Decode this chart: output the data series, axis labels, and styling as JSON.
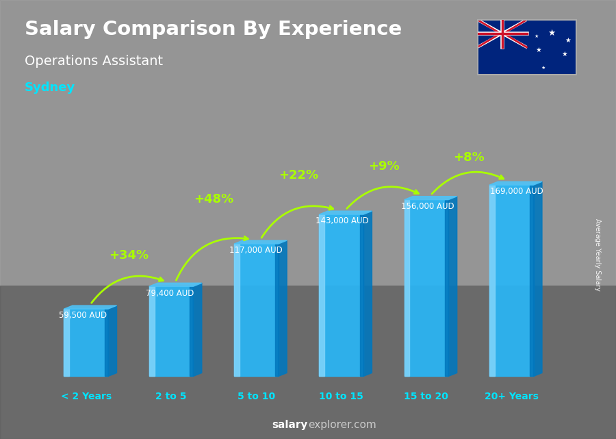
{
  "title": "Salary Comparison By Experience",
  "subtitle": "Operations Assistant",
  "city": "Sydney",
  "categories": [
    "< 2 Years",
    "2 to 5",
    "5 to 10",
    "10 to 15",
    "15 to 20",
    "20+ Years"
  ],
  "values": [
    59500,
    79400,
    117000,
    143000,
    156000,
    169000
  ],
  "value_labels": [
    "59,500 AUD",
    "79,400 AUD",
    "117,000 AUD",
    "143,000 AUD",
    "156,000 AUD",
    "169,000 AUD"
  ],
  "pct_changes": [
    "+34%",
    "+48%",
    "+22%",
    "+9%",
    "+8%"
  ],
  "bar_face_color": "#29b6f6",
  "bar_left_color": "#81d4fa",
  "bar_right_color": "#0277bd",
  "bar_top_color": "#4fc3f7",
  "bg_color": "#888888",
  "text_color_white": "#ffffff",
  "text_color_cyan": "#00e5ff",
  "text_color_green": "#aaff00",
  "ylabel_text": "Average Yearly Salary",
  "ylim_max": 220000,
  "bar_width": 0.52,
  "depth": 0.18
}
